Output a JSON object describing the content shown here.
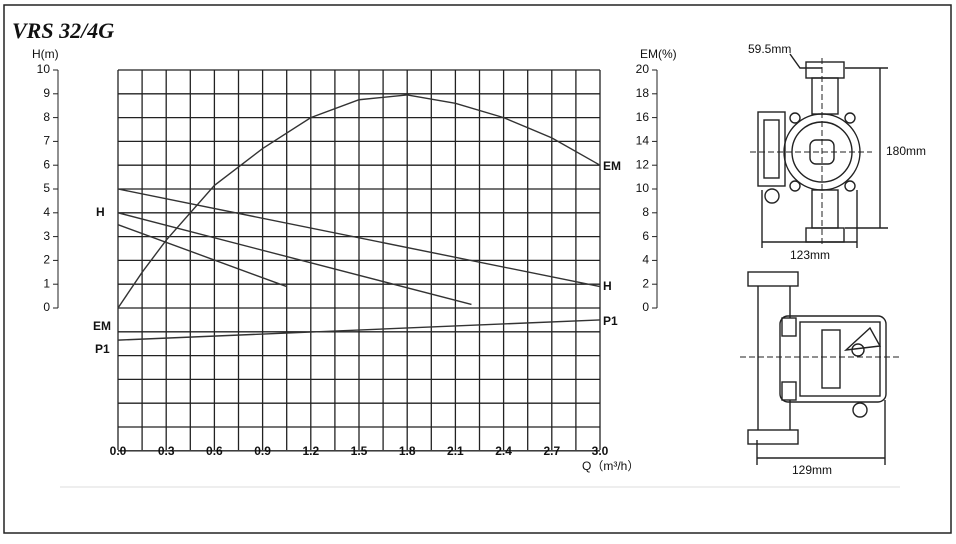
{
  "chart_data": {
    "type": "line",
    "title": "VRS 32/4G",
    "y_label": "H(m)",
    "y2_label": "EM(%)",
    "x_label": "Q（m³/h）",
    "xlim": [
      0,
      3
    ],
    "ylim": [
      0,
      10
    ],
    "y2lim": [
      0,
      20
    ],
    "xticks": [
      {
        "value": 0,
        "label": "0.0"
      },
      0.3,
      0.6,
      0.9,
      1.2,
      1.5,
      1.8,
      2.1,
      2.4,
      2.7,
      {
        "value": 3,
        "label": "3.0"
      }
    ],
    "yticks": [
      0,
      1,
      2,
      3,
      4,
      5,
      6,
      7,
      8,
      9,
      10
    ],
    "y2ticks": [
      0,
      2,
      4,
      6,
      8,
      10,
      12,
      14,
      16,
      18,
      20
    ],
    "grid": true,
    "series": [
      {
        "color": "#333333",
        "axis": "y2",
        "x": [
          0,
          0.15,
          0.3,
          0.6,
          0.9,
          1.2,
          1.5,
          1.8,
          2.1,
          2.4,
          2.7,
          3.0
        ],
        "values": [
          0,
          3.0,
          5.7,
          10.3,
          13.4,
          16.0,
          17.5,
          17.9,
          17.2,
          16.0,
          14.3,
          12.0
        ]
      },
      {
        "color": "#333333",
        "x": [
          0,
          3.0
        ],
        "values": [
          5.0,
          0.9
        ]
      },
      {
        "color": "#333333",
        "x": [
          0,
          2.2
        ],
        "values": [
          4.0,
          0.15
        ]
      },
      {
        "color": "#333333",
        "x": [
          0,
          1.05
        ],
        "values": [
          3.5,
          0.9
        ]
      },
      {
        "color": "#333333",
        "x": [
          0,
          3.0
        ],
        "values": [
          -1.35,
          -0.5
        ]
      }
    ],
    "curve_labels": [
      "H",
      "EM",
      "P1",
      "EM",
      "H",
      "P1"
    ]
  },
  "dimensions": [
    "59.5mm",
    "180mm",
    "123mm",
    "129mm"
  ]
}
